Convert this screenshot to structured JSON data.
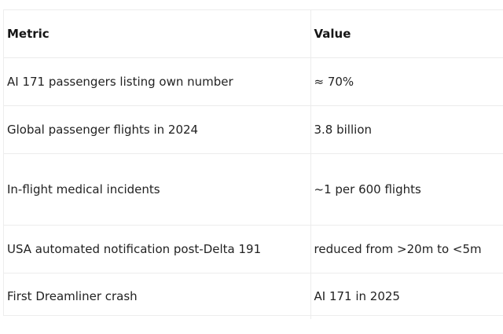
{
  "table": {
    "headers": {
      "metric": "Metric",
      "value": "Value"
    },
    "rows": [
      {
        "metric": "AI 171 passengers listing own number",
        "value": "≈ 70%"
      },
      {
        "metric": "Global passenger flights in 2024",
        "value": "3.8 billion"
      },
      {
        "metric": "In-flight medical incidents",
        "value": "~1 per 600 flights"
      },
      {
        "metric": "USA automated notification post-Delta 191",
        "value": "reduced from >20m to <5m"
      },
      {
        "metric": "First Dreamliner crash",
        "value": "AI 171 in 2025"
      }
    ]
  }
}
